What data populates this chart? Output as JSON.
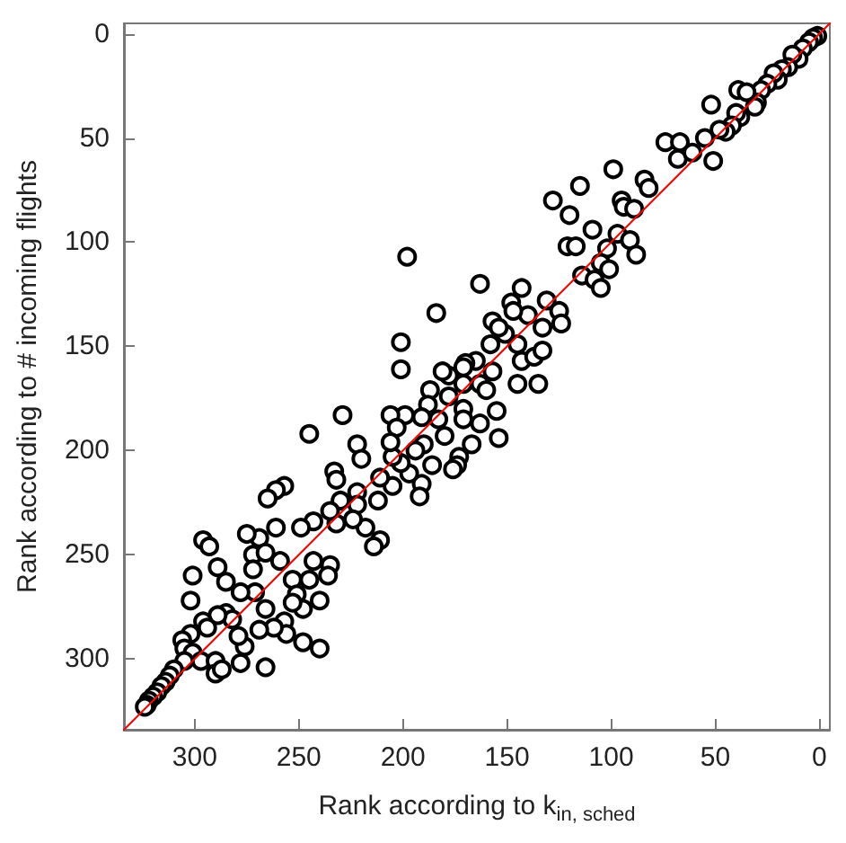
{
  "chart_data": {
    "type": "scatter",
    "xlabel": "Rank according to k$_{in, sched}$",
    "ylabel": "Rank according to # incoming flights",
    "xlim": [
      334,
      -5
    ],
    "ylim": [
      334,
      -5
    ],
    "xticks": [
      300,
      250,
      200,
      150,
      100,
      50,
      0
    ],
    "yticks": [
      0,
      50,
      100,
      150,
      200,
      250,
      300
    ],
    "grid": false,
    "marker": "circle",
    "series": [
      {
        "color": "#000000",
        "x": [
          1,
          3,
          5,
          8,
          10,
          13,
          15,
          18,
          20,
          22,
          25,
          28,
          30,
          38,
          40,
          42,
          45,
          48,
          52,
          39,
          35,
          31,
          55,
          74,
          67,
          68,
          61,
          51,
          99,
          84,
          82,
          115,
          128,
          120,
          95,
          94,
          89,
          109,
          121,
          117,
          198,
          97,
          91,
          88,
          102,
          105,
          101,
          114,
          108,
          105,
          163,
          143,
          184,
          131,
          125,
          133,
          124,
          140,
          148,
          147,
          157,
          151,
          154,
          145,
          143,
          137,
          133,
          135,
          145,
          158,
          157,
          165,
          170,
          171,
          163,
          160,
          155,
          154,
          171,
          178,
          181,
          187,
          188,
          178,
          171,
          171,
          163,
          167,
          173,
          174,
          176,
          186,
          190,
          183,
          180,
          191,
          194,
          191,
          192,
          197,
          201,
          205,
          199,
          206,
          203,
          206,
          201,
          201,
          229,
          245,
          222,
          220,
          205,
          211,
          212,
          211,
          214,
          218,
          222,
          222,
          224,
          230,
          232,
          235,
          233,
          232,
          243,
          257,
          261,
          265,
          249,
          261,
          269,
          275,
          296,
          293,
          301,
          302,
          289,
          285,
          272,
          266,
          259,
          253,
          245,
          243,
          235,
          236,
          240,
          251,
          248,
          253,
          257,
          256,
          262,
          248,
          240,
          271,
          278,
          266,
          272,
          269,
          276,
          278,
          266,
          279,
          285,
          282,
          289,
          296,
          294,
          302,
          306,
          305,
          301,
          297,
          290,
          290,
          287,
          305,
          310,
          312,
          314,
          316,
          318,
          320,
          322,
          323,
          324
        ],
        "values": [
          1,
          2,
          4,
          7,
          12,
          10,
          16,
          17,
          22,
          19,
          24,
          27,
          33,
          40,
          38,
          44,
          47,
          46,
          34,
          27,
          28,
          35,
          50,
          52,
          52,
          60,
          57,
          61,
          65,
          70,
          74,
          73,
          80,
          87,
          80,
          83,
          84,
          94,
          102,
          102,
          107,
          96,
          99,
          106,
          103,
          110,
          113,
          116,
          118,
          122,
          120,
          122,
          134,
          128,
          133,
          141,
          139,
          135,
          129,
          133,
          138,
          144,
          141,
          149,
          157,
          155,
          152,
          168,
          168,
          149,
          162,
          157,
          158,
          160,
          168,
          171,
          181,
          194,
          168,
          164,
          162,
          171,
          178,
          174,
          180,
          185,
          187,
          197,
          203,
          207,
          209,
          207,
          197,
          185,
          193,
          184,
          200,
          216,
          222,
          211,
          206,
          203,
          183,
          183,
          189,
          196,
          148,
          161,
          183,
          192,
          197,
          204,
          217,
          213,
          224,
          243,
          246,
          237,
          220,
          226,
          233,
          224,
          235,
          229,
          210,
          214,
          234,
          217,
          219,
          223,
          237,
          237,
          242,
          240,
          243,
          246,
          260,
          272,
          256,
          263,
          250,
          249,
          253,
          262,
          262,
          253,
          255,
          260,
          272,
          269,
          276,
          273,
          282,
          288,
          285,
          292,
          295,
          268,
          268,
          276,
          257,
          286,
          294,
          302,
          304,
          289,
          278,
          281,
          279,
          282,
          285,
          288,
          291,
          295,
          297,
          301,
          301,
          307,
          305,
          301,
          305,
          308,
          311,
          313,
          316,
          318,
          320,
          322,
          323
        ]
      },
      {
        "type": "line",
        "color": "#ff0000",
        "marker": "none",
        "x": [
          334,
          -5
        ],
        "values": [
          334,
          -5
        ]
      }
    ]
  }
}
